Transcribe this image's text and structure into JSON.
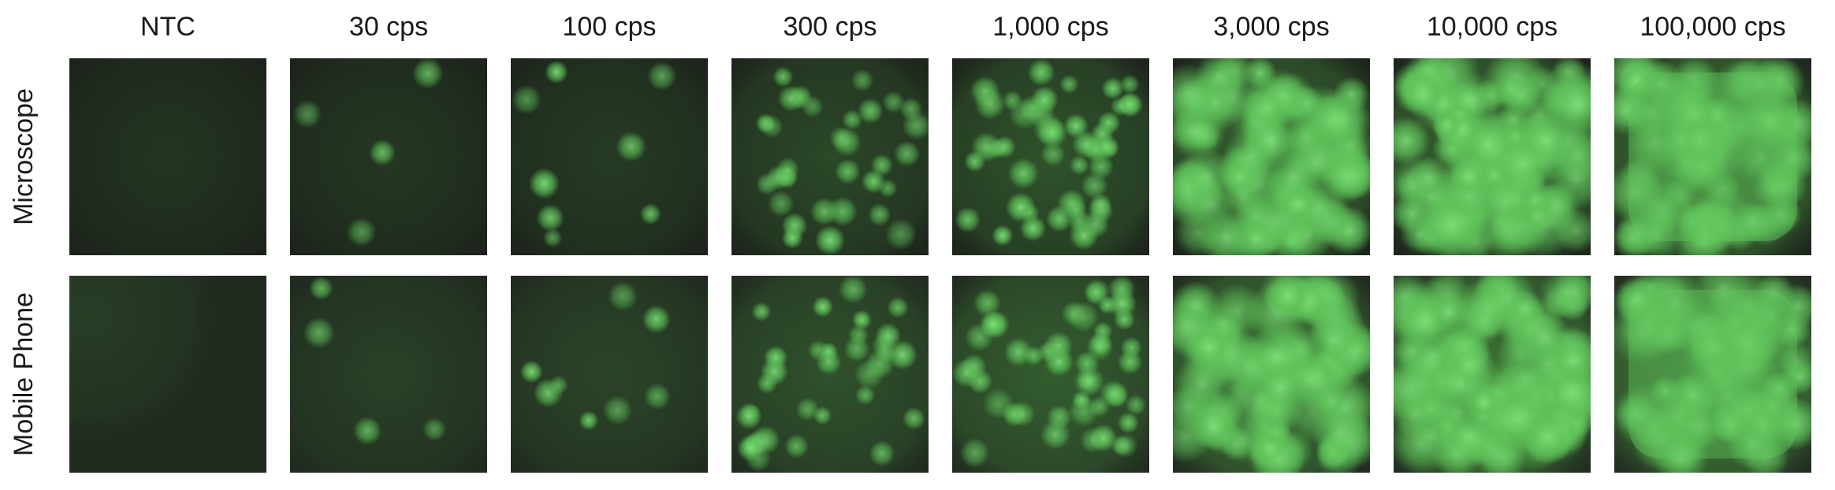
{
  "columns": [
    {
      "label": "NTC",
      "density": 0.0
    },
    {
      "label": "30 cps",
      "density": 0.05
    },
    {
      "label": "100 cps",
      "density": 0.12
    },
    {
      "label": "300 cps",
      "density": 0.35
    },
    {
      "label": "1,000 cps",
      "density": 0.55
    },
    {
      "label": "3,000 cps",
      "density": 0.8
    },
    {
      "label": "10,000 cps",
      "density": 0.92
    },
    {
      "label": "100,000 cps",
      "density": 1.0
    }
  ],
  "rows": [
    {
      "label": "Microscope",
      "background": "#1c221b",
      "glow": "#3a6f34"
    },
    {
      "label": "Mobile Phone",
      "background": "#202a1f",
      "glow": "#3f7a38"
    }
  ],
  "colors": {
    "background": "#ffffff",
    "text": "#1a1a1a",
    "fluorescence": "#5fc35a",
    "fluorescence_bright": "#7fe07a"
  }
}
